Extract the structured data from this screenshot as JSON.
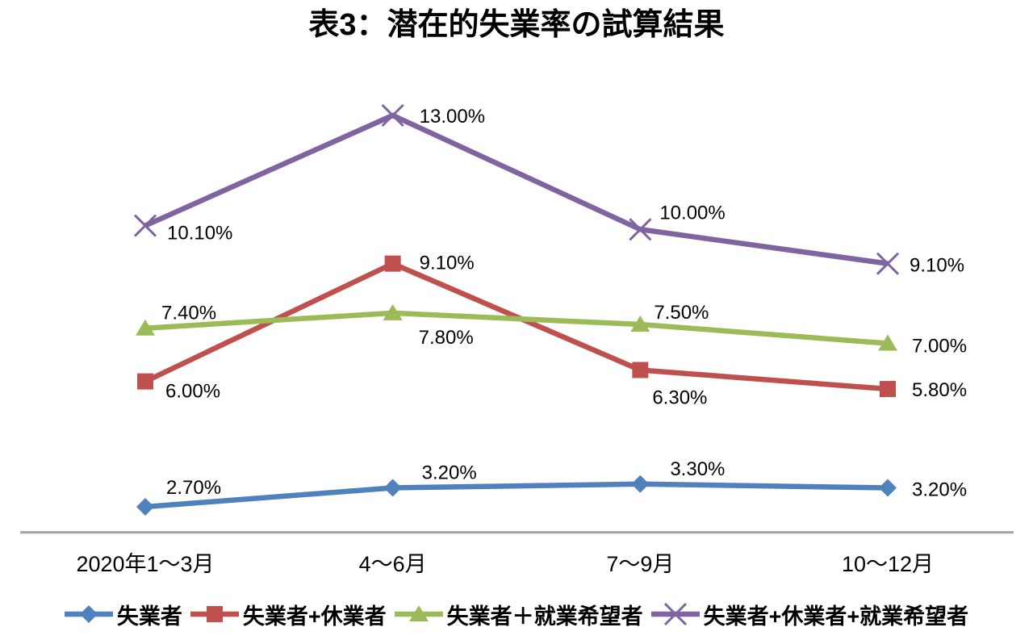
{
  "chart_data": {
    "type": "line",
    "title": "表3：潜在的失業率の試算結果",
    "categories": [
      "2020年1〜3月",
      "4〜6月",
      "7〜9月",
      "10〜12月"
    ],
    "series": [
      {
        "name": "失業者",
        "color": "#4F81BD",
        "marker": "diamond",
        "values": [
          2.7,
          3.2,
          3.3,
          3.2
        ],
        "labels": [
          "2.70%",
          "3.20%",
          "3.30%",
          "3.20%"
        ]
      },
      {
        "name": "失業者+休業者",
        "color": "#C0504D",
        "marker": "square",
        "values": [
          6.0,
          9.1,
          6.3,
          5.8
        ],
        "labels": [
          "6.00%",
          "9.10%",
          "6.30%",
          "5.80%"
        ]
      },
      {
        "name": "失業者＋就業希望者",
        "color": "#9BBB59",
        "marker": "triangle",
        "values": [
          7.4,
          7.8,
          7.5,
          7.0
        ],
        "labels": [
          "7.40%",
          "7.80%",
          "7.50%",
          "7.00%"
        ]
      },
      {
        "name": "失業者+休業者+就業希望者",
        "color": "#8064A2",
        "marker": "x",
        "values": [
          10.1,
          13.0,
          10.0,
          9.1
        ],
        "labels": [
          "10.10%",
          "13.00%",
          "10.00%",
          "9.10%"
        ]
      }
    ],
    "xlabel": "",
    "ylabel": "",
    "ylim": [
      2.0,
      13.5
    ],
    "grid": false,
    "data_labels": true,
    "legend_position": "bottom",
    "axis_color": "#9B9B9B",
    "text_color": "#000000",
    "background": "#FFFFFF"
  }
}
